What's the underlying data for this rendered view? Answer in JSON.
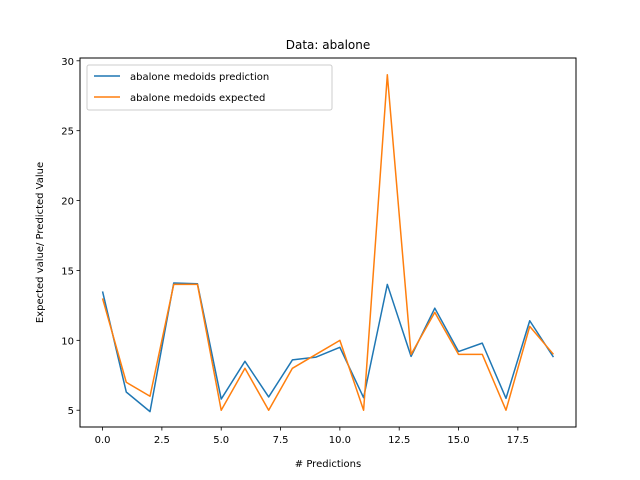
{
  "chart_data": {
    "type": "line",
    "title": "Data: abalone",
    "xlabel": "# Predictions",
    "ylabel": "Expected value/ Predicted Value",
    "xlim": [
      -0.95,
      19.95
    ],
    "ylim": [
      3.8,
      30.2
    ],
    "xticks": [
      0,
      2.5,
      5,
      7.5,
      10,
      12.5,
      15,
      17.5
    ],
    "xtick_labels": [
      "0.0",
      "2.5",
      "5.0",
      "7.5",
      "10.0",
      "12.5",
      "15.0",
      "17.5"
    ],
    "yticks": [
      5,
      10,
      15,
      20,
      25,
      30
    ],
    "ytick_labels": [
      "5",
      "10",
      "15",
      "20",
      "25",
      "30"
    ],
    "grid": false,
    "legend_position": "top-left",
    "x": [
      0,
      1,
      2,
      3,
      4,
      5,
      6,
      7,
      8,
      9,
      10,
      11,
      12,
      13,
      14,
      15,
      16,
      17,
      18,
      19
    ],
    "series": [
      {
        "name": "abalone medoids prediction",
        "color": "#1f77b4",
        "values": [
          13.5,
          6.3,
          4.9,
          14.1,
          14.05,
          5.8,
          8.5,
          5.95,
          8.6,
          8.8,
          9.5,
          5.9,
          14.0,
          8.85,
          12.3,
          9.2,
          9.8,
          5.85,
          11.4,
          8.8
        ]
      },
      {
        "name": "abalone medoids expected",
        "color": "#ff7f0e",
        "values": [
          13,
          7,
          6,
          14,
          14,
          5,
          8,
          5,
          8,
          9,
          10,
          5,
          29,
          9,
          12,
          9,
          9,
          5,
          11,
          9
        ]
      }
    ]
  }
}
